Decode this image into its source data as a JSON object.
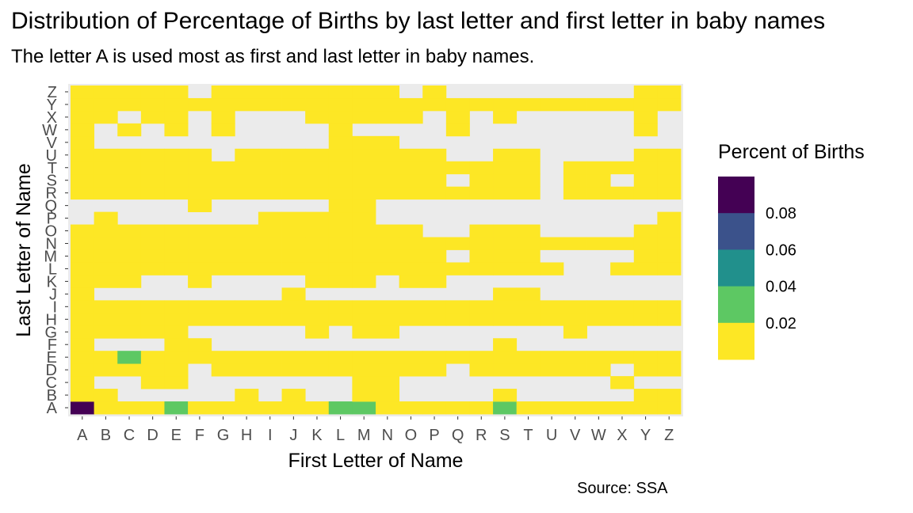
{
  "chart_data": {
    "type": "heatmap",
    "title": "Distribution of Percentage of Births by last letter and first letter in baby names",
    "subtitle": "The letter A is used most as first and last letter in baby names.",
    "caption": "Source: SSA",
    "xlabel": "First Letter of Name",
    "ylabel": "Last Letter of Name",
    "x_categories": [
      "A",
      "B",
      "C",
      "D",
      "E",
      "F",
      "G",
      "H",
      "I",
      "J",
      "K",
      "L",
      "M",
      "N",
      "O",
      "P",
      "Q",
      "R",
      "S",
      "T",
      "U",
      "V",
      "W",
      "X",
      "Y",
      "Z"
    ],
    "y_categories": [
      "A",
      "B",
      "C",
      "D",
      "E",
      "F",
      "G",
      "H",
      "I",
      "J",
      "K",
      "L",
      "M",
      "N",
      "O",
      "P",
      "Q",
      "R",
      "S",
      "T",
      "U",
      "V",
      "W",
      "X",
      "Y",
      "Z"
    ],
    "grid_rows": [
      "00000000000000000000000000",
      "00000000000000000000000000",
      "00000000000000000000000000",
      "00000000000000000000000000",
      "00000000000000000000000000",
      "00000000000000000000000000",
      "00000000000000000000000000",
      "00000000000000000000000000",
      "00000000000000000000000000",
      "00000000000000000000000000",
      "00000000000000000000000000",
      "00000000000000000000000000",
      "00000000000000000000000000",
      "00000000000000000000000000",
      "00000000000000000000000000",
      "00000000000000000000000000",
      "00000000000000000000000000",
      "00000000000000000000000000",
      "00000000000000000000000000",
      "00000000000000000000000000",
      "00000000000000000000000000",
      "00000000000000000000000000",
      "00000000000000000000000000",
      "00000000000000000000000000",
      "00000000000000000000000000",
      "00000000000000000000000000"
    ],
    "grid_rows_note": "",
    "missing_cells": {
      "Z": [
        "F",
        "O",
        "Q",
        "R",
        "S",
        "T",
        "U",
        "V",
        "W",
        "X"
      ],
      "Y": [],
      "X": [
        "C",
        "F",
        "H",
        "I",
        "J",
        "P",
        "R",
        "T",
        "U",
        "V",
        "W",
        "X",
        "Z"
      ],
      "W": [
        "B",
        "D",
        "F",
        "H",
        "I",
        "J",
        "K",
        "M",
        "N",
        "O",
        "P",
        "R",
        "S",
        "T",
        "U",
        "V",
        "W",
        "X",
        "Z"
      ],
      "V": [
        "B",
        "C",
        "D",
        "E",
        "F",
        "G",
        "H",
        "I",
        "J",
        "K",
        "O",
        "P",
        "Q",
        "R",
        "S",
        "T",
        "U",
        "V",
        "W",
        "X",
        "Y",
        "Z"
      ],
      "U": [
        "G",
        "Q",
        "R",
        "U",
        "V",
        "W",
        "X"
      ],
      "T": [
        "U"
      ],
      "S": [
        "Q",
        "U",
        "X"
      ],
      "R": [
        "U"
      ],
      "Q": [
        "A",
        "B",
        "C",
        "D",
        "E",
        "G",
        "H",
        "I",
        "J",
        "K",
        "N",
        "O",
        "P",
        "Q",
        "R",
        "S",
        "T",
        "U",
        "V",
        "W",
        "X",
        "Y",
        "Z"
      ],
      "P": [
        "A",
        "C",
        "D",
        "E",
        "F",
        "G",
        "H",
        "N",
        "O",
        "P",
        "Q",
        "R",
        "S",
        "T",
        "U",
        "V",
        "W",
        "X",
        "Y"
      ],
      "O": [
        "P",
        "Q",
        "U",
        "V",
        "W",
        "X"
      ],
      "N": [],
      "M": [
        "Q",
        "U",
        "V",
        "W",
        "X"
      ],
      "L": [
        "V",
        "W"
      ],
      "K": [
        "D",
        "E",
        "G",
        "H",
        "I",
        "J",
        "N",
        "Q",
        "R",
        "S",
        "T",
        "U",
        "V",
        "W",
        "X",
        "Y",
        "Z"
      ],
      "J": [
        "B",
        "C",
        "D",
        "E",
        "F",
        "G",
        "H",
        "I",
        "K",
        "L",
        "M",
        "N",
        "O",
        "P",
        "Q",
        "R",
        "U",
        "V",
        "W",
        "X",
        "Y",
        "Z"
      ],
      "I": [],
      "H": [],
      "G": [
        "F",
        "G",
        "H",
        "I",
        "J",
        "L",
        "O",
        "P",
        "Q",
        "R",
        "S",
        "T",
        "U",
        "W",
        "X",
        "Y",
        "Z"
      ],
      "F": [
        "B",
        "C",
        "D",
        "G",
        "H",
        "I",
        "J",
        "K",
        "L",
        "M",
        "N",
        "O",
        "P",
        "Q",
        "R",
        "T",
        "U",
        "V",
        "W",
        "X",
        "Y",
        "Z"
      ],
      "E": [],
      "D": [
        "F",
        "Q",
        "X"
      ],
      "C": [
        "B",
        "C",
        "F",
        "G",
        "H",
        "I",
        "J",
        "K",
        "L",
        "O",
        "P",
        "Q",
        "R",
        "S",
        "T",
        "U",
        "V",
        "W",
        "Y",
        "Z"
      ],
      "B": [
        "C",
        "D",
        "E",
        "F",
        "G",
        "I",
        "K",
        "L",
        "O",
        "P",
        "Q",
        "R",
        "T",
        "U",
        "V",
        "W",
        "X"
      ],
      "A": []
    },
    "highlight_cells": [
      {
        "first": "A",
        "last": "A",
        "value": 0.095
      },
      {
        "first": "E",
        "last": "A",
        "value": 0.02
      },
      {
        "first": "L",
        "last": "A",
        "value": 0.02
      },
      {
        "first": "M",
        "last": "A",
        "value": 0.02
      },
      {
        "first": "S",
        "last": "A",
        "value": 0.02
      },
      {
        "first": "C",
        "last": "E",
        "value": 0.02
      }
    ],
    "default_value": 0.002,
    "legend": {
      "title": "Percent of Births",
      "ticks": [
        0.08,
        0.06,
        0.04,
        0.02
      ],
      "tick_labels": [
        "0.08",
        "0.06",
        "0.04",
        "0.02"
      ],
      "colors": [
        "#440154",
        "#3B528B",
        "#21908C",
        "#5DC863",
        "#FDE725"
      ],
      "placement": "right"
    },
    "missing_color": "#EBEBEB",
    "range": [
      0.0,
      0.1
    ]
  }
}
